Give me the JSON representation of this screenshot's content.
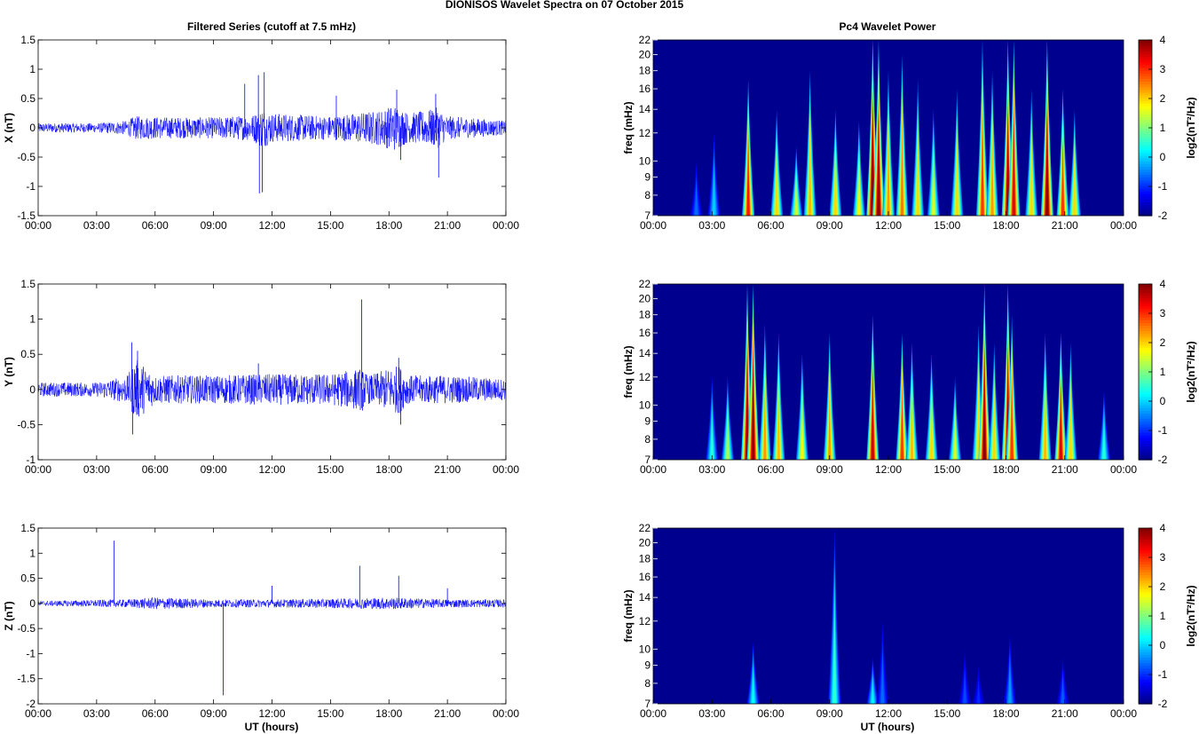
{
  "title": "DIONISOS Wavelet Spectra on 07 October   2015",
  "left_title": "Filtered Series (cutoff at 7.5 mHz)",
  "right_title": "Pc4 Wavelet Power",
  "xlabel": "UT (hours)",
  "colors": {
    "series": "#0000ff",
    "background": "#00008f"
  },
  "chart_data": [
    {
      "type": "line",
      "component": "X",
      "ylabel": "X (nT)",
      "xlim": [
        0,
        24
      ],
      "ylim": [
        -1.5,
        1.5
      ],
      "xticks": [
        "00:00",
        "03:00",
        "06:00",
        "09:00",
        "12:00",
        "15:00",
        "18:00",
        "21:00",
        "00:00"
      ],
      "yticks": [
        "-1.5",
        "-1",
        "-0.5",
        "0",
        "0.5",
        "1",
        "1.5"
      ],
      "noise_envelope": [
        [
          0,
          0.08
        ],
        [
          3,
          0.08
        ],
        [
          4.5,
          0.12
        ],
        [
          5,
          0.2
        ],
        [
          7,
          0.18
        ],
        [
          9,
          0.18
        ],
        [
          11,
          0.22
        ],
        [
          11.5,
          0.35
        ],
        [
          12,
          0.25
        ],
        [
          15,
          0.2
        ],
        [
          17.5,
          0.3
        ],
        [
          18.3,
          0.4
        ],
        [
          19,
          0.25
        ],
        [
          20,
          0.3
        ],
        [
          20.5,
          0.35
        ],
        [
          21,
          0.2
        ],
        [
          24,
          0.12
        ]
      ],
      "spikes": [
        [
          11.3,
          0.9
        ],
        [
          11.35,
          -1.12
        ],
        [
          11.5,
          -1.1
        ],
        [
          11.6,
          0.95
        ],
        [
          10.6,
          0.75
        ],
        [
          15.3,
          0.55
        ],
        [
          18.4,
          0.65
        ],
        [
          18.6,
          -0.55
        ],
        [
          20.4,
          0.58
        ],
        [
          20.55,
          -0.85
        ]
      ]
    },
    {
      "type": "line",
      "component": "Y",
      "ylabel": "Y (nT)",
      "xlim": [
        0,
        24
      ],
      "ylim": [
        -1,
        1.5
      ],
      "xticks": [
        "00:00",
        "03:00",
        "06:00",
        "09:00",
        "12:00",
        "15:00",
        "18:00",
        "21:00",
        "00:00"
      ],
      "yticks": [
        "-1",
        "-0.5",
        "0",
        "0.5",
        "1",
        "1.5"
      ],
      "noise_envelope": [
        [
          0,
          0.1
        ],
        [
          3,
          0.1
        ],
        [
          4.6,
          0.2
        ],
        [
          5,
          0.45
        ],
        [
          5.4,
          0.35
        ],
        [
          6,
          0.2
        ],
        [
          9,
          0.2
        ],
        [
          11.5,
          0.22
        ],
        [
          15,
          0.22
        ],
        [
          16.5,
          0.3
        ],
        [
          17,
          0.2
        ],
        [
          18.5,
          0.35
        ],
        [
          19,
          0.2
        ],
        [
          21,
          0.2
        ],
        [
          24,
          0.15
        ]
      ],
      "spikes": [
        [
          4.8,
          0.67
        ],
        [
          4.85,
          -0.64
        ],
        [
          5.1,
          0.55
        ],
        [
          11.3,
          0.37
        ],
        [
          16.6,
          1.28
        ],
        [
          16.65,
          -0.3
        ],
        [
          18.5,
          0.45
        ],
        [
          18.6,
          -0.5
        ]
      ]
    },
    {
      "type": "line",
      "component": "Z",
      "ylabel": "Z (nT)",
      "xlim": [
        0,
        24
      ],
      "ylim": [
        -2,
        1.5
      ],
      "xticks": [
        "00:00",
        "03:00",
        "06:00",
        "09:00",
        "12:00",
        "15:00",
        "18:00",
        "21:00",
        "00:00"
      ],
      "yticks": [
        "-2",
        "-1.5",
        "-1",
        "-0.5",
        "0",
        "0.5",
        "1",
        "1.5"
      ],
      "noise_envelope": [
        [
          0,
          0.05
        ],
        [
          4.5,
          0.08
        ],
        [
          6,
          0.12
        ],
        [
          9,
          0.08
        ],
        [
          12,
          0.08
        ],
        [
          16,
          0.1
        ],
        [
          18,
          0.12
        ],
        [
          21,
          0.08
        ],
        [
          24,
          0.08
        ]
      ],
      "spikes": [
        [
          3.9,
          1.25
        ],
        [
          9.5,
          -1.83
        ],
        [
          12,
          0.35
        ],
        [
          16.5,
          0.75
        ],
        [
          18.5,
          0.55
        ],
        [
          21,
          0.3
        ]
      ]
    },
    {
      "type": "heatmap",
      "component": "X",
      "ylabel": "freq (mHz)",
      "colorbar_label": "log2(nT²/Hz)",
      "xlim": [
        0,
        24
      ],
      "ylim": [
        7,
        22
      ],
      "clim": [
        -2,
        4
      ],
      "xticks": [
        "00:00",
        "03:00",
        "06:00",
        "09:00",
        "12:00",
        "15:00",
        "18:00",
        "21:00",
        "00:00"
      ],
      "yticks": [
        "7",
        "8",
        "9",
        "10",
        "12",
        "14",
        "16",
        "18",
        "20",
        "22"
      ],
      "cticks": [
        "4",
        "3",
        "2",
        "1",
        "0",
        "-1",
        "-2"
      ],
      "bursts": [
        [
          4.85,
          3.2,
          17
        ],
        [
          6.3,
          2,
          14
        ],
        [
          7.3,
          1.5,
          11
        ],
        [
          8,
          2.2,
          18
        ],
        [
          9.3,
          2,
          14
        ],
        [
          10.5,
          1.8,
          13
        ],
        [
          11.2,
          4.5,
          22
        ],
        [
          11.5,
          4,
          22
        ],
        [
          12,
          2.4,
          18
        ],
        [
          12.7,
          2.6,
          20
        ],
        [
          13.5,
          2,
          17
        ],
        [
          14.3,
          1.6,
          14
        ],
        [
          15.5,
          2,
          16
        ],
        [
          16.8,
          3,
          22
        ],
        [
          17.3,
          2.4,
          18
        ],
        [
          18.1,
          4,
          22
        ],
        [
          18.4,
          3.5,
          22
        ],
        [
          19.3,
          2,
          16
        ],
        [
          20.1,
          4,
          22
        ],
        [
          20.9,
          3,
          16
        ],
        [
          21.5,
          2,
          14
        ],
        [
          2.2,
          -0.6,
          10
        ],
        [
          3.1,
          0,
          12
        ]
      ]
    },
    {
      "type": "heatmap",
      "component": "Y",
      "ylabel": "freq (mHz)",
      "colorbar_label": "log2(nT²/Hz)",
      "xlim": [
        0,
        24
      ],
      "ylim": [
        7,
        22
      ],
      "clim": [
        -2,
        4
      ],
      "xticks": [
        "00:00",
        "03:00",
        "06:00",
        "09:00",
        "12:00",
        "15:00",
        "18:00",
        "21:00",
        "00:00"
      ],
      "yticks": [
        "7",
        "8",
        "9",
        "10",
        "12",
        "14",
        "16",
        "18",
        "20",
        "22"
      ],
      "cticks": [
        "4",
        "3",
        "2",
        "1",
        "0",
        "-1",
        "-2"
      ],
      "bursts": [
        [
          3,
          0.5,
          12
        ],
        [
          3.8,
          1.3,
          12
        ],
        [
          4.8,
          4,
          22
        ],
        [
          5.1,
          4,
          22
        ],
        [
          5.7,
          2.4,
          17
        ],
        [
          6.4,
          2.2,
          16
        ],
        [
          7.6,
          1.8,
          14
        ],
        [
          9,
          2.4,
          16
        ],
        [
          11.2,
          3.6,
          18
        ],
        [
          12.7,
          3,
          16
        ],
        [
          13.2,
          2.2,
          15
        ],
        [
          14.2,
          2,
          14
        ],
        [
          15.4,
          1.6,
          12
        ],
        [
          16.6,
          2,
          17
        ],
        [
          16.9,
          4,
          22
        ],
        [
          17.4,
          2,
          15
        ],
        [
          18.1,
          4,
          22
        ],
        [
          18.3,
          3,
          18
        ],
        [
          20,
          2.2,
          16
        ],
        [
          20.8,
          3.5,
          16
        ],
        [
          21.3,
          2,
          15
        ],
        [
          23,
          0.5,
          11
        ]
      ]
    },
    {
      "type": "heatmap",
      "component": "Z",
      "ylabel": "freq (mHz)",
      "colorbar_label": "log2(nT²/Hz)",
      "xlim": [
        0,
        24
      ],
      "ylim": [
        7,
        22
      ],
      "clim": [
        -2,
        4
      ],
      "xticks": [
        "00:00",
        "03:00",
        "06:00",
        "09:00",
        "12:00",
        "15:00",
        "18:00",
        "21:00",
        "00:00"
      ],
      "yticks": [
        "7",
        "8",
        "9",
        "10",
        "12",
        "14",
        "16",
        "18",
        "20",
        "22"
      ],
      "cticks": [
        "4",
        "3",
        "2",
        "1",
        "0",
        "-1",
        "-2"
      ],
      "bursts": [
        [
          5.1,
          0.3,
          10.5
        ],
        [
          9.25,
          0.6,
          22
        ],
        [
          11.2,
          0.2,
          9.5
        ],
        [
          11.7,
          -0.6,
          12
        ],
        [
          15.9,
          -0.8,
          10
        ],
        [
          18.2,
          -0.3,
          11
        ],
        [
          20.9,
          -0.7,
          9.5
        ],
        [
          16.6,
          -1.0,
          9
        ]
      ]
    }
  ]
}
